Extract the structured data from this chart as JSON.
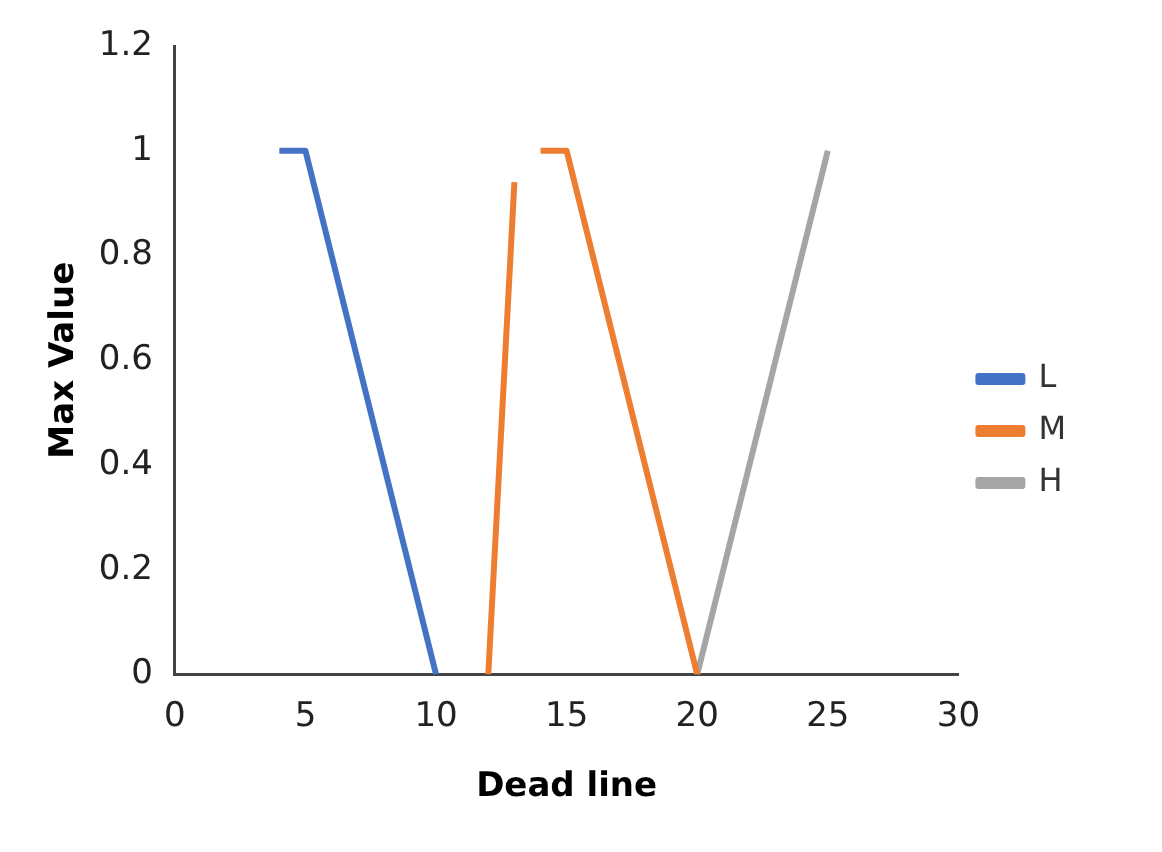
{
  "chart_data": {
    "type": "line",
    "xlabel": "Dead line",
    "ylabel": "Max Value",
    "series": [
      {
        "name": "L",
        "color": "#4472c4",
        "x": [
          4,
          5,
          10
        ],
        "values": [
          1,
          1,
          0
        ]
      },
      {
        "name": "M",
        "color": "#ed7d31",
        "x": [
          12,
          13,
          13.5,
          14,
          15,
          20
        ],
        "values": [
          0,
          0.94,
          null,
          1,
          1,
          0
        ]
      },
      {
        "name": "H",
        "color": "#a5a5a5",
        "x": [
          20,
          25
        ],
        "values": [
          0,
          1
        ]
      }
    ],
    "xlim": [
      0,
      30
    ],
    "xticks": [
      0,
      5,
      10,
      15,
      20,
      25,
      30
    ],
    "ylim": [
      0,
      1.2
    ],
    "yticks": [
      0,
      0.2,
      0.4,
      0.6,
      0.8,
      1,
      1.2
    ],
    "grid": false,
    "legend": "right",
    "marker": "none",
    "line_style": "solid"
  }
}
